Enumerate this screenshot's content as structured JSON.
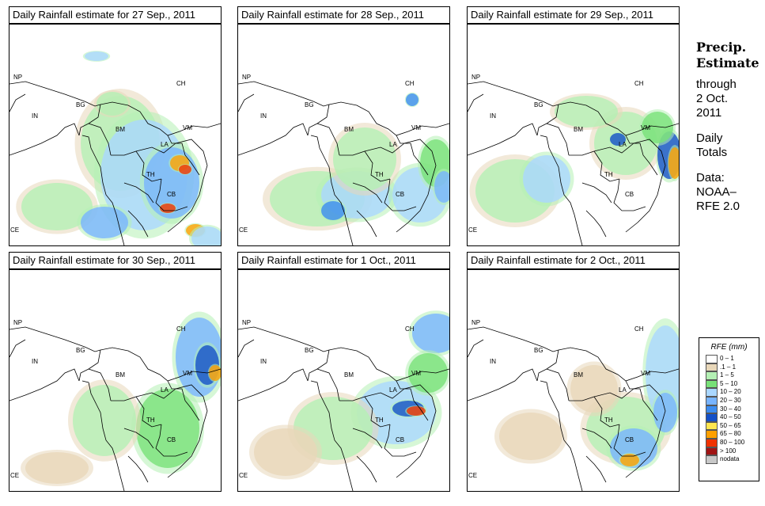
{
  "panels": [
    {
      "title": "Daily Rainfall estimate for  27 Sep., 2011"
    },
    {
      "title": "Daily Rainfall estimate for  28 Sep., 2011"
    },
    {
      "title": "Daily Rainfall estimate for  29 Sep., 2011"
    },
    {
      "title": "Daily Rainfall estimate for  30 Sep., 2011"
    },
    {
      "title": "Daily Rainfall estimate for  1 Oct., 2011"
    },
    {
      "title": "Daily Rainfall estimate for  2 Oct., 2011"
    }
  ],
  "country_labels": {
    "np": "NP",
    "in": "IN",
    "bg": "BG",
    "bm": "BM",
    "ch": "CH",
    "vm": "VM",
    "la": "LA",
    "th": "TH",
    "cb": "CB",
    "ce": "CE"
  },
  "side": {
    "heading1": "Precip.",
    "heading2": "Estimate",
    "line1": "through",
    "line2": "2 Oct.",
    "line3": "2011",
    "line4": "Daily",
    "line5": "Totals",
    "line6": "Data:",
    "line7": "NOAA–",
    "line8": "RFE 2.0"
  },
  "legend": {
    "title": "RFE (mm)",
    "items": [
      {
        "label": "0 – 1",
        "color": "#ffffff"
      },
      {
        "label": ".1 – 1",
        "color": "#e8d7b9"
      },
      {
        "label": "1 – 5",
        "color": "#b4f0b4"
      },
      {
        "label": "5 – 10",
        "color": "#78e178"
      },
      {
        "label": "10 – 20",
        "color": "#aad7ff"
      },
      {
        "label": "20 – 30",
        "color": "#78b4ff"
      },
      {
        "label": "30 – 40",
        "color": "#3c8cf0"
      },
      {
        "label": "40 – 50",
        "color": "#1450c8"
      },
      {
        "label": "50 – 65",
        "color": "#ffe650"
      },
      {
        "label": "65 – 80",
        "color": "#ffa000"
      },
      {
        "label": "80 – 100",
        "color": "#f03200"
      },
      {
        "label": "> 100",
        "color": "#a01414"
      },
      {
        "label": "nodata",
        "color": "#c8c8c8"
      }
    ]
  }
}
